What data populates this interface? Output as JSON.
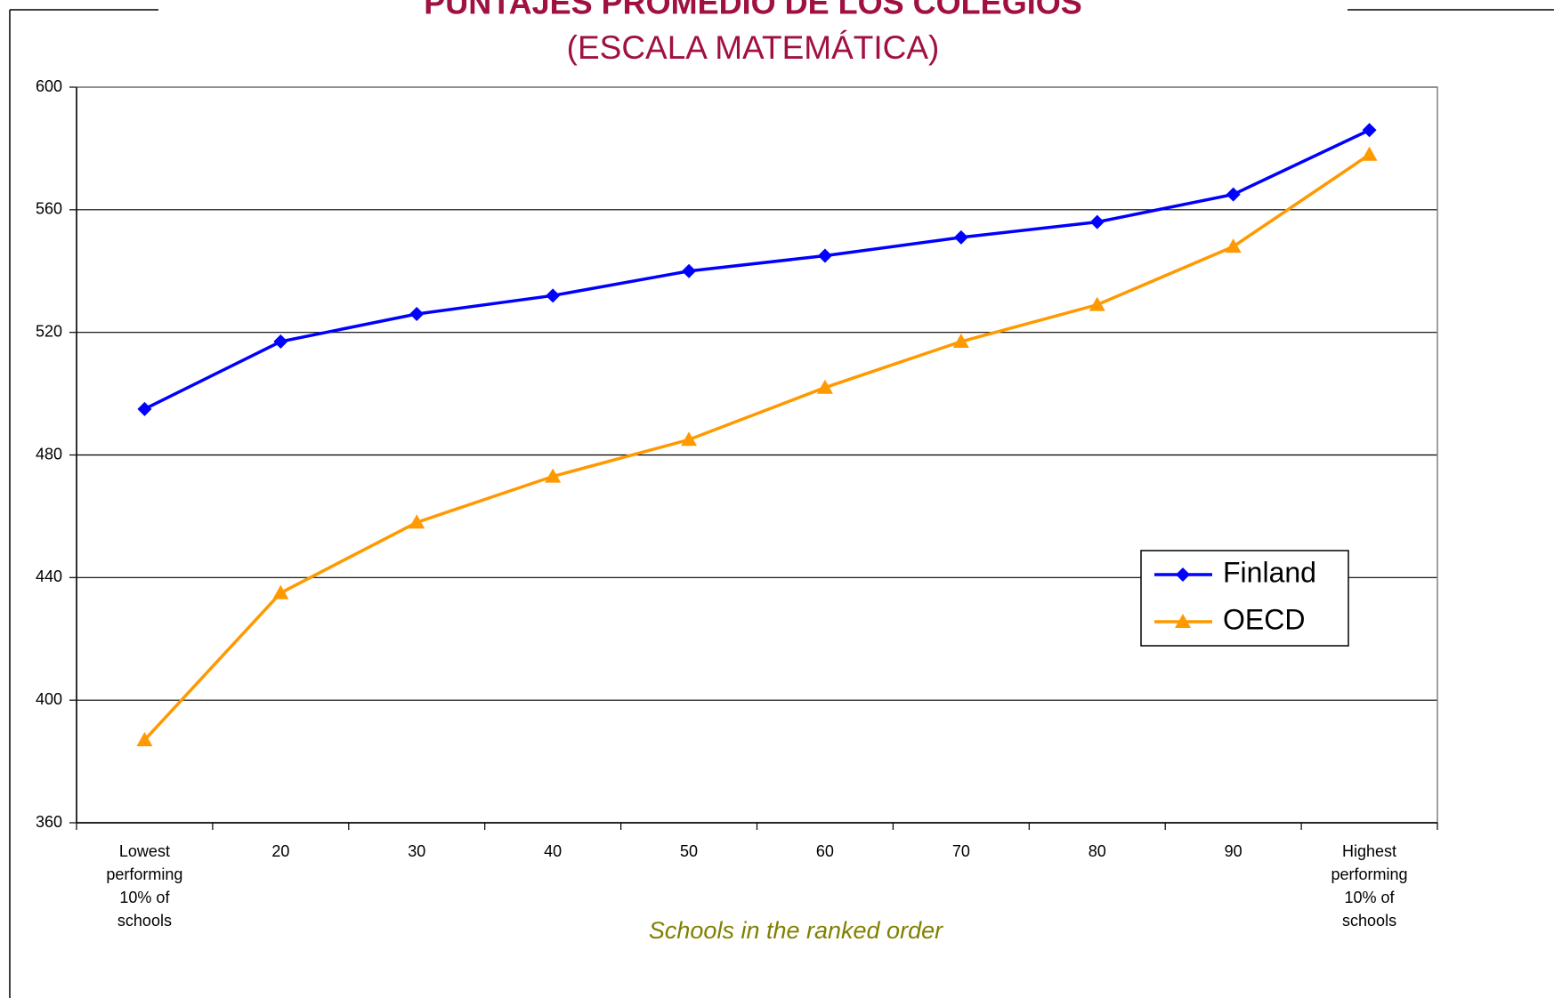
{
  "chart_data": {
    "type": "line",
    "title": "PUNTAJES PROMEDIO DE LOS COLEGIOS",
    "subtitle": "(ESCALA MATEMÁTICA)",
    "x_label": "Schools in the ranked order",
    "categories": [
      "Lowest performing 10% of schools",
      "20",
      "30",
      "40",
      "50",
      "60",
      "70",
      "80",
      "90",
      "Highest performing 10% of schools"
    ],
    "series": [
      {
        "name": "Finland",
        "color": "#0000ff",
        "marker": "diamond",
        "values": [
          495,
          517,
          526,
          532,
          540,
          545,
          551,
          556,
          565,
          586
        ]
      },
      {
        "name": "OECD",
        "color": "#ff9900",
        "marker": "triangle",
        "values": [
          387,
          435,
          458,
          473,
          485,
          502,
          517,
          529,
          548,
          578
        ]
      }
    ],
    "ylim": [
      360,
      600
    ],
    "yticks": [
      360,
      400,
      440,
      480,
      520,
      560,
      600
    ],
    "grid": true,
    "legend": "right"
  }
}
